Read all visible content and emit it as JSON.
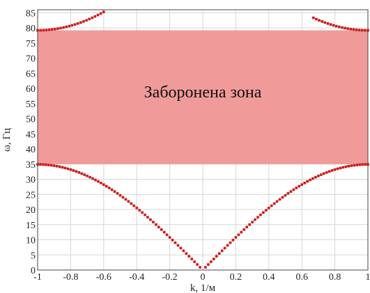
{
  "chart_data": {
    "type": "scatter",
    "xlabel": "k, 1/м",
    "ylabel": "ω, Гц",
    "xlim": [
      -1,
      1
    ],
    "ylim": [
      0,
      86
    ],
    "x_ticks": [
      "-1",
      "-0.8",
      "-0.6",
      "-0.4",
      "-0.2",
      "0",
      "0.2",
      "0.4",
      "0.6",
      "0.8",
      "1"
    ],
    "y_ticks": [
      "0",
      "5",
      "10",
      "15",
      "20",
      "25",
      "30",
      "35",
      "40",
      "45",
      "50",
      "55",
      "60",
      "65",
      "70",
      "75",
      "80",
      "85"
    ],
    "grid": true,
    "colors": {
      "points": "#cc1a1a",
      "band": "#f09a9a"
    },
    "annotations": [
      {
        "text": "Заборонена зона",
        "x": 0,
        "y": 57
      }
    ],
    "band": {
      "label": "Заборонена зона",
      "y_min": 35,
      "y_max": 79.2,
      "x_min": -1,
      "x_max": 1
    },
    "series": [
      {
        "branch": "lower",
        "k_range": [
          -1,
          1
        ],
        "points_count": 121,
        "edge_value": 34.9,
        "center_value": 0
      },
      {
        "branch": "upper-left",
        "k_range": [
          -1,
          -0.6
        ],
        "points_count": 24,
        "values_from_to": [
          79.2,
          85.3
        ]
      },
      {
        "branch": "upper-right",
        "k_range": [
          0.67,
          1
        ],
        "points_count": 20,
        "values_from_to": [
          83.7,
          79.2
        ]
      }
    ]
  }
}
